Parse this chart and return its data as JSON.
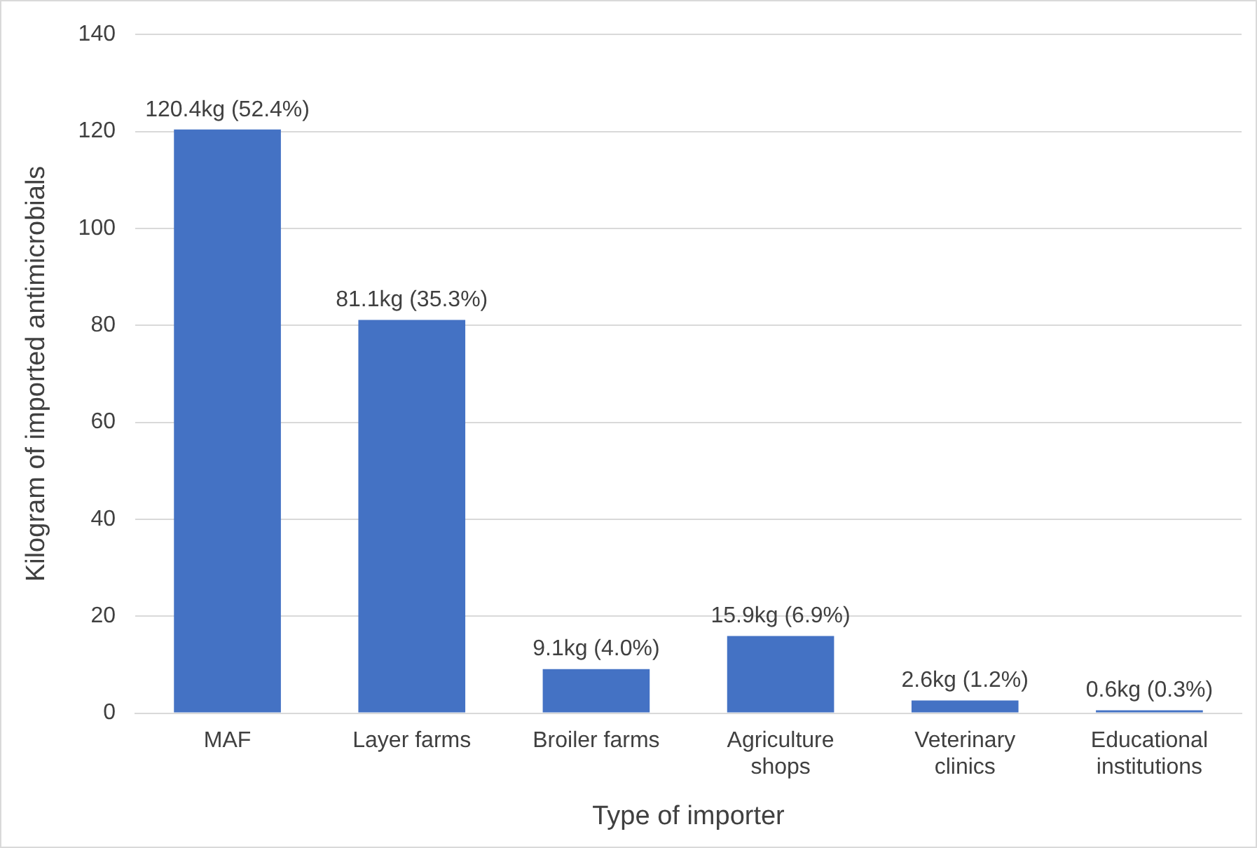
{
  "chart_data": {
    "type": "bar",
    "xlabel": "Type of importer",
    "ylabel": "Kilogram of imported antimicrobials",
    "categories": [
      "MAF",
      "Layer farms",
      "Broiler farms",
      "Agriculture shops",
      "Veterinary clinics",
      "Educational institutions"
    ],
    "values": [
      120.4,
      81.1,
      9.1,
      15.9,
      2.6,
      0.6
    ],
    "value_labels": [
      "120.4kg (52.4%)",
      "81.1kg (35.3%)",
      "9.1kg (4.0%)",
      "15.9kg (6.9%)",
      "2.6kg (1.2%)",
      "0.6kg (0.3%)"
    ],
    "color": "#4472c4",
    "ylim": [
      0,
      140
    ],
    "yticks": [
      0,
      20,
      40,
      60,
      80,
      100,
      120,
      140
    ],
    "grid": "y",
    "legend": false
  }
}
